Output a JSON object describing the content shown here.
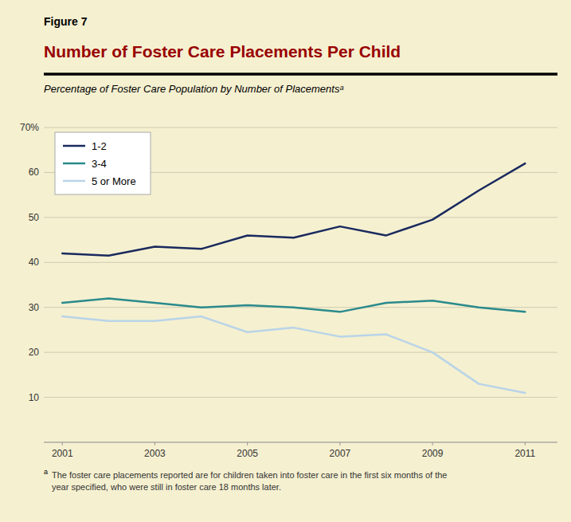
{
  "chart_data": {
    "type": "line",
    "title": "Number of Foster Care Placements Per Child",
    "subtitle": "Percentage of Foster Care Population by Number of Placementsᵃ",
    "annotations": [
      "Figure 7",
      "a",
      "The foster care placements reported are for children taken into foster care in the first six months of the\nyear specified, who were still in foster care 18 months later."
    ],
    "x": [
      2001,
      2002,
      2003,
      2004,
      2005,
      2006,
      2007,
      2008,
      2009,
      2010,
      2011
    ],
    "series": [
      {
        "name": "1-2",
        "color": "#1a2a5e",
        "values": [
          42,
          41.5,
          43.5,
          43,
          46,
          45.5,
          48,
          46,
          49.5,
          56,
          62
        ]
      },
      {
        "name": "3-4",
        "color": "#2a8a8c",
        "values": [
          31,
          32,
          31,
          30,
          30.5,
          30,
          29,
          31,
          31.5,
          30,
          29
        ]
      },
      {
        "name": "5 or More",
        "color": "#b8d4e8",
        "values": [
          28,
          27,
          27,
          28,
          24.5,
          25.5,
          23.5,
          24,
          20,
          13,
          11
        ]
      }
    ],
    "xlim": [
      2000.6,
      2011.7
    ],
    "xticks": [
      2001,
      2003,
      2005,
      2007,
      2009,
      2011
    ],
    "ylim": [
      0,
      70
    ],
    "yticks": [
      {
        "value": 0,
        "label": null
      },
      10,
      20,
      30,
      40,
      50,
      60,
      {
        "value": 70,
        "label": "70%"
      }
    ],
    "grid": true,
    "legend": "upper left"
  }
}
